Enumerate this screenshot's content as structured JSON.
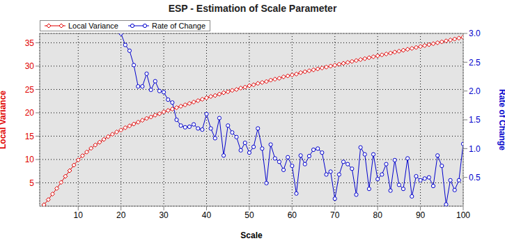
{
  "chart_data": {
    "type": "line",
    "title": "ESP - Estimation of Scale Parameter",
    "xlabel": "Scale",
    "ylabel": "Local Variance",
    "y2label": "Rate of Change",
    "grid": true,
    "legend": "top-left",
    "x": [
      2,
      3,
      4,
      5,
      6,
      7,
      8,
      9,
      10,
      11,
      12,
      13,
      14,
      15,
      16,
      17,
      18,
      19,
      20,
      21,
      22,
      23,
      24,
      25,
      26,
      27,
      28,
      29,
      30,
      31,
      32,
      33,
      34,
      35,
      36,
      37,
      38,
      39,
      40,
      41,
      42,
      43,
      44,
      45,
      46,
      47,
      48,
      49,
      50,
      51,
      52,
      53,
      54,
      55,
      56,
      57,
      58,
      59,
      60,
      61,
      62,
      63,
      64,
      65,
      66,
      67,
      68,
      69,
      70,
      71,
      72,
      73,
      74,
      75,
      76,
      77,
      78,
      79,
      80,
      81,
      82,
      83,
      84,
      85,
      86,
      87,
      88,
      89,
      90,
      91,
      92,
      93,
      94,
      95,
      96,
      97,
      98,
      99,
      100
    ],
    "xlim": [
      1,
      100
    ],
    "xticks": [
      10,
      20,
      30,
      40,
      50,
      60,
      70,
      80,
      90,
      100
    ],
    "ylim": [
      0,
      37
    ],
    "yticks": [
      5,
      10,
      15,
      20,
      25,
      30,
      35
    ],
    "y2lim": [
      0,
      3
    ],
    "y2ticks": [
      0.5,
      {
        "value": 1,
        "label": "1.0"
      },
      1.5,
      {
        "value": 2,
        "label": "2.0"
      },
      2.5,
      {
        "value": 3,
        "label": "3.0"
      }
    ],
    "series": [
      {
        "name": "Local Variance",
        "color": "#e00000",
        "marker": "diamond",
        "values": [
          0.3,
          1.4,
          2.6,
          3.8,
          5.1,
          6.4,
          7.6,
          8.8,
          9.9,
          10.8,
          11.6,
          12.4,
          13.1,
          13.7,
          14.3,
          14.9,
          15.4,
          15.9,
          16.3,
          16.8,
          17.2,
          17.6,
          18.0,
          18.4,
          18.8,
          19.1,
          19.5,
          19.8,
          20.2,
          20.5,
          20.8,
          21.1,
          21.4,
          21.7,
          22.0,
          22.3,
          22.6,
          22.9,
          23.2,
          23.5,
          23.7,
          24.0,
          24.3,
          24.5,
          24.8,
          25.0,
          25.3,
          25.5,
          25.8,
          26.0,
          26.3,
          26.5,
          26.7,
          27.0,
          27.2,
          27.4,
          27.7,
          27.9,
          28.1,
          28.3,
          28.6,
          28.8,
          29.0,
          29.2,
          29.4,
          29.6,
          29.8,
          30.0,
          30.2,
          30.4,
          30.6,
          30.8,
          31.0,
          31.2,
          31.4,
          31.6,
          31.8,
          32.0,
          32.2,
          32.4,
          32.6,
          32.8,
          33.0,
          33.2,
          33.4,
          33.6,
          33.8,
          34.0,
          34.2,
          34.4,
          34.6,
          34.8,
          35.0,
          35.2,
          35.4,
          35.6,
          35.8,
          36.0,
          36.2
        ]
      },
      {
        "name": "Rate of Change",
        "color": "#0000cc",
        "marker": "circle",
        "axis": "y2",
        "values": [
          null,
          null,
          null,
          null,
          null,
          null,
          null,
          null,
          null,
          null,
          null,
          null,
          null,
          null,
          null,
          null,
          null,
          null,
          3.0,
          2.8,
          2.7,
          2.45,
          2.08,
          2.08,
          2.3,
          2.02,
          2.17,
          2.0,
          1.98,
          1.85,
          1.8,
          1.5,
          1.4,
          1.37,
          1.38,
          1.42,
          1.35,
          1.33,
          1.6,
          1.35,
          1.18,
          1.53,
          0.88,
          1.4,
          1.28,
          1.2,
          0.97,
          1.1,
          0.93,
          1.03,
          1.35,
          1.0,
          0.4,
          1.07,
          0.83,
          0.77,
          0.63,
          0.85,
          0.7,
          0.22,
          0.88,
          0.73,
          0.87,
          0.98,
          1.0,
          0.93,
          0.55,
          0.6,
          0.13,
          0.55,
          0.77,
          0.73,
          0.65,
          0.2,
          1.02,
          0.9,
          0.3,
          0.9,
          0.47,
          0.55,
          0.73,
          0.27,
          0.8,
          0.37,
          0.3,
          0.83,
          0.17,
          0.52,
          0.45,
          0.48,
          0.5,
          0.35,
          0.88,
          0.7,
          0.03,
          0.45,
          0.28,
          0.45,
          1.08
        ]
      }
    ]
  }
}
